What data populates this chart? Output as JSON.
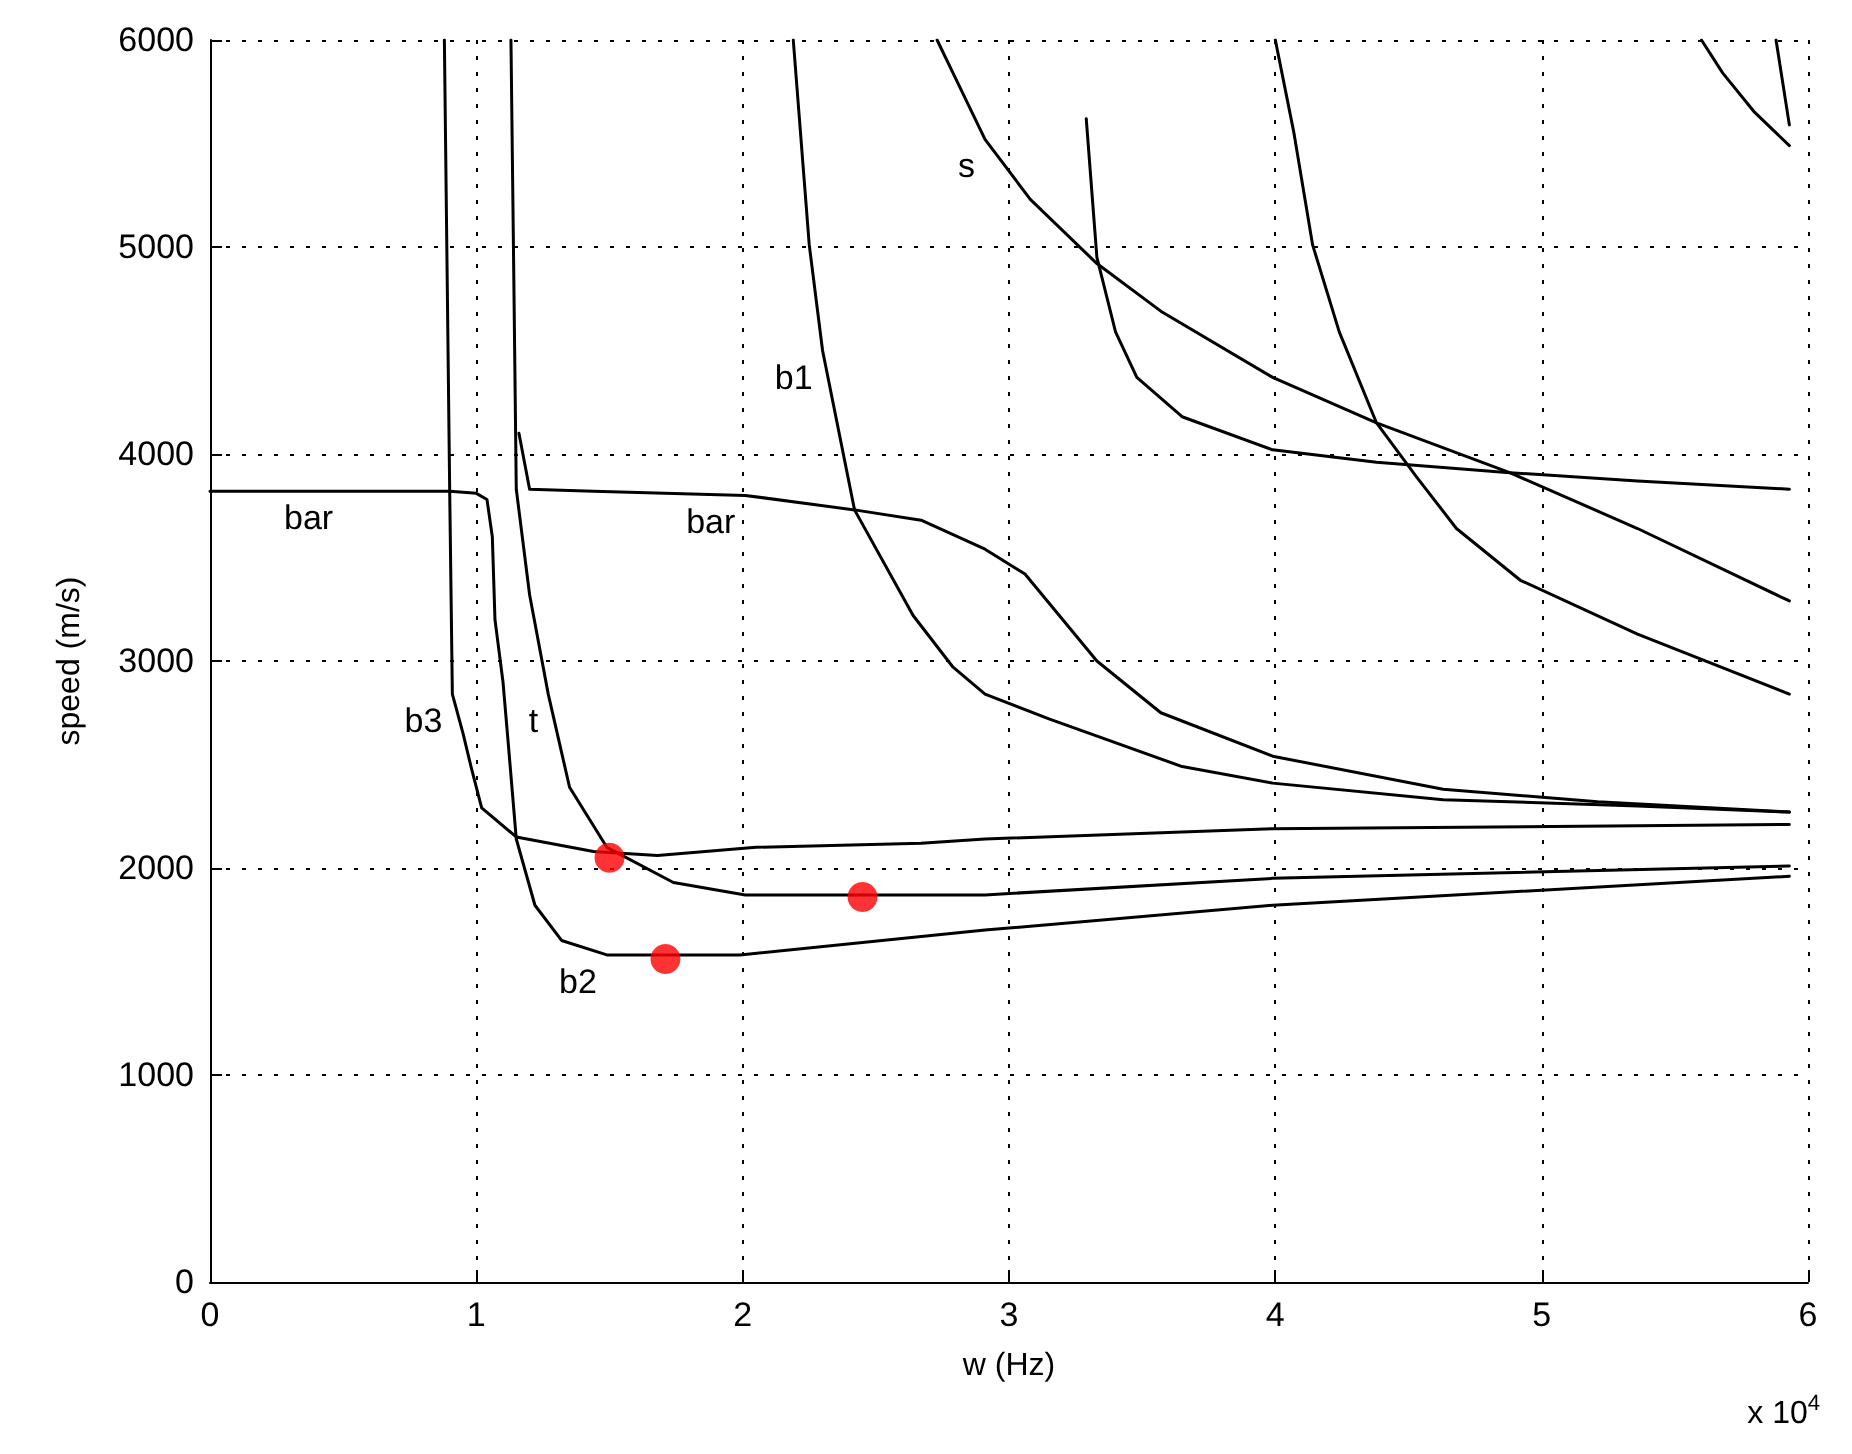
{
  "chart_data": {
    "type": "line",
    "xlabel": "w (Hz)",
    "ylabel": "speed (m/s)",
    "xlim": [
      0,
      6
    ],
    "ylim": [
      0,
      6000
    ],
    "xticks": [
      0,
      1,
      2,
      3,
      4,
      5,
      6
    ],
    "yticks": [
      0,
      1000,
      2000,
      3000,
      4000,
      5000,
      6000
    ],
    "grid": true,
    "marker": "none",
    "line_style": "solid",
    "series": [
      {
        "color": "#000000",
        "x": [
          0,
          0.5,
          0.9,
          1.0,
          1.04,
          1.06,
          1.07,
          1.1,
          1.12,
          1.15,
          1.22,
          1.32,
          1.49,
          1.99,
          2.91,
          3.99,
          5.93
        ],
        "values": [
          3820,
          3820,
          3820,
          3810,
          3780,
          3600,
          3200,
          2900,
          2600,
          2140,
          1820,
          1650,
          1580,
          1580,
          1700,
          1820,
          1960
        ]
      },
      {
        "color": "#000000",
        "x": [
          0.88,
          0.9,
          0.91,
          0.95,
          0.98,
          1.02,
          1.15,
          1.44,
          1.68,
          2.05,
          2.67,
          2.91,
          3.99,
          5.93
        ],
        "values": [
          6000,
          3820,
          2840,
          2650,
          2490,
          2290,
          2150,
          2080,
          2060,
          2100,
          2120,
          2140,
          2190,
          2210
        ]
      },
      {
        "color": "#000000",
        "x": [
          1.13,
          1.14,
          1.15,
          1.2,
          1.27,
          1.35,
          1.49,
          1.74,
          2.01,
          2.91,
          3.99,
          5.93
        ],
        "values": [
          6000,
          4930,
          3830,
          3320,
          2840,
          2390,
          2100,
          1930,
          1870,
          1870,
          1950,
          2010
        ]
      },
      {
        "color": "#000000",
        "x": [
          1.16,
          1.2,
          1.44,
          2.01,
          2.42,
          2.67,
          2.91,
          3.06,
          3.33,
          3.57,
          3.99,
          4.63,
          5.21,
          5.93
        ],
        "values": [
          4100,
          3830,
          3820,
          3800,
          3730,
          3680,
          3540,
          3420,
          3000,
          2750,
          2540,
          2380,
          2320,
          2270
        ]
      },
      {
        "color": "#000000",
        "x": [
          2.19,
          2.25,
          2.3,
          2.42,
          2.64,
          2.79,
          2.91,
          3.15,
          3.65,
          3.99,
          4.63,
          5.36,
          5.93
        ],
        "values": [
          6000,
          5010,
          4500,
          3730,
          3220,
          2970,
          2840,
          2720,
          2490,
          2410,
          2330,
          2300,
          2270
        ]
      },
      {
        "color": "#000000",
        "x": [
          2.73,
          2.79,
          2.91,
          3.08,
          3.33,
          3.57,
          3.99,
          4.38,
          4.88,
          5.36,
          5.93
        ],
        "values": [
          6000,
          5840,
          5520,
          5230,
          4920,
          4690,
          4370,
          4150,
          3910,
          3640,
          3290
        ]
      },
      {
        "color": "#000000",
        "x": [
          3.29,
          3.33,
          3.4,
          3.48,
          3.65,
          3.99,
          4.38,
          4.88,
          5.36,
          5.93
        ],
        "values": [
          5620,
          4950,
          4590,
          4370,
          4180,
          4020,
          3960,
          3910,
          3870,
          3830
        ]
      },
      {
        "color": "#000000",
        "x": [
          4.0,
          4.07,
          4.14,
          4.24,
          4.38,
          4.53,
          4.68,
          4.92,
          5.36,
          5.93
        ],
        "values": [
          6000,
          5550,
          5010,
          4590,
          4150,
          3890,
          3640,
          3390,
          3130,
          2840
        ]
      },
      {
        "color": "#000000",
        "x": [
          5.6,
          5.68,
          5.8,
          5.93
        ],
        "values": [
          6000,
          5840,
          5650,
          5490
        ]
      },
      {
        "color": "#000000",
        "x": [
          5.88,
          5.93
        ],
        "values": [
          6000,
          5590
        ]
      },
      {
        "type": "scatter",
        "marker": "circle",
        "color": "#ff0000",
        "x": [
          1.5,
          2.45,
          1.71
        ],
        "values": [
          2050,
          1860,
          1560
        ]
      }
    ],
    "annotations": [
      {
        "text": "bar",
        "x": 0.5,
        "y": 3820
      },
      {
        "text": "bar",
        "x": 2.01,
        "y": 3800
      },
      {
        "text": "b1",
        "x": 2.3,
        "y": 4500
      },
      {
        "text": "s",
        "x": 2.91,
        "y": 5520
      },
      {
        "text": "b3",
        "x": 0.91,
        "y": 2840
      },
      {
        "text": "t",
        "x": 1.27,
        "y": 2840
      },
      {
        "text": "b2",
        "x": 1.49,
        "y": 1580
      },
      "x 10$^{4}$"
    ]
  }
}
